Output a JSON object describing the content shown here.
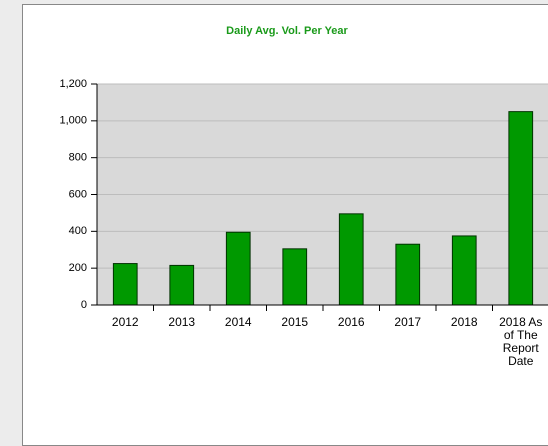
{
  "chart_data": {
    "type": "bar",
    "title": "Daily Avg. Vol. Per Year",
    "categories": [
      "2012",
      "2013",
      "2014",
      "2015",
      "2016",
      "2017",
      "2018",
      "2018 As of The Report Date"
    ],
    "values": [
      225,
      215,
      395,
      305,
      495,
      330,
      375,
      1050
    ],
    "color": "#009900",
    "ylim": [
      0,
      1200
    ],
    "yticks": [
      0,
      200,
      400,
      600,
      800,
      {
        "value": 1000,
        "label": "1,000"
      },
      {
        "value": 1200,
        "label": "1,200"
      }
    ],
    "grid": true
  }
}
